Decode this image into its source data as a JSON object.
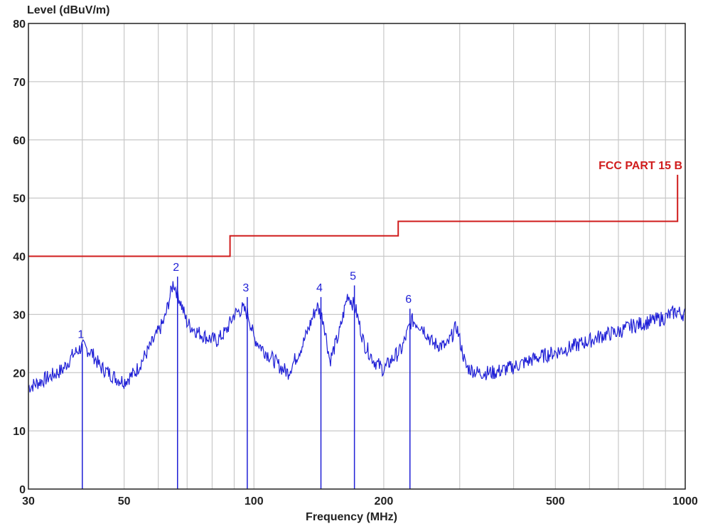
{
  "chart_data": {
    "type": "line",
    "title": "",
    "ylabel": "Level (dBuV/m)",
    "xlabel": "Frequency (MHz)",
    "x_scale": "log",
    "xlim": [
      30,
      1000
    ],
    "ylim": [
      0,
      80
    ],
    "y_ticks": [
      "0",
      "10",
      "20",
      "30",
      "40",
      "50",
      "60",
      "70",
      "80"
    ],
    "x_ticks": [
      {
        "value": 30,
        "label": "30"
      },
      {
        "value": 50,
        "label": "50"
      },
      {
        "value": 100,
        "label": "100"
      },
      {
        "value": 200,
        "label": "200"
      },
      {
        "value": 500,
        "label": "500"
      },
      {
        "value": 1000,
        "label": "1000"
      }
    ],
    "grid": true,
    "colors": {
      "trace": "#1f1fd6",
      "limit": "#d01c1c",
      "grid": "#c8c8c8",
      "axis": "#222222"
    },
    "series": [
      {
        "name": "",
        "kind": "measured-trace",
        "x": [
          30,
          32,
          34,
          36,
          38,
          40,
          42,
          44,
          46,
          48,
          50,
          53,
          56,
          59,
          62,
          65,
          67,
          70,
          74,
          78,
          82,
          86,
          90,
          94,
          97,
          100,
          105,
          110,
          115,
          120,
          125,
          130,
          136,
          140,
          145,
          150,
          158,
          165,
          172,
          180,
          190,
          200,
          210,
          220,
          232,
          245,
          260,
          280,
          295,
          310,
          330,
          360,
          400,
          450,
          500,
          550,
          600,
          650,
          700,
          750,
          800,
          850,
          900,
          950,
          1000
        ],
        "y": [
          17.5,
          18.5,
          19.5,
          20.5,
          23,
          24.5,
          23.5,
          21,
          20,
          19,
          18.5,
          20,
          23,
          26,
          29,
          35.5,
          33,
          28.5,
          27,
          26,
          25.5,
          27,
          30,
          31,
          30,
          26,
          24,
          22.5,
          21,
          20,
          22.5,
          25,
          29,
          31.5,
          29,
          22,
          27,
          33.5,
          31,
          25,
          22,
          20.5,
          22.5,
          24,
          29,
          28,
          25,
          24.5,
          28,
          21,
          20,
          20,
          21,
          22.5,
          23.5,
          24.5,
          25.5,
          26.5,
          27,
          28,
          28.5,
          29,
          29.5,
          30.5,
          30
        ]
      },
      {
        "name": "FCC PART 15 B",
        "kind": "limit-line",
        "x": [
          30,
          88,
          88,
          216,
          216,
          960,
          960
        ],
        "y": [
          40,
          40,
          43.5,
          43.5,
          46,
          46,
          54
        ]
      }
    ],
    "markers": [
      {
        "label": "1",
        "x": 40,
        "y": 25
      },
      {
        "label": "2",
        "x": 66.5,
        "y": 36.5
      },
      {
        "label": "3",
        "x": 96.5,
        "y": 33
      },
      {
        "label": "4",
        "x": 143,
        "y": 33
      },
      {
        "label": "5",
        "x": 171,
        "y": 35
      },
      {
        "label": "6",
        "x": 230,
        "y": 31
      }
    ]
  }
}
